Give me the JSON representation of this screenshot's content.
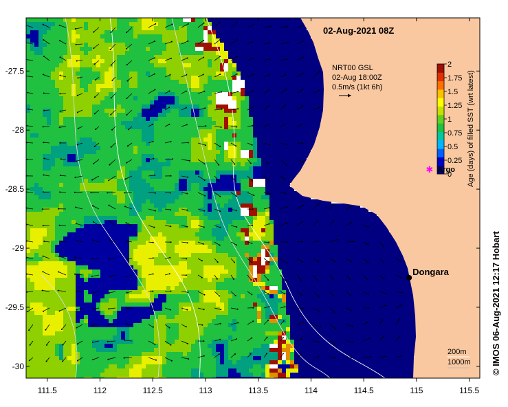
{
  "map": {
    "title": "02-Aug-2021 08Z",
    "lon_range": [
      111.3,
      115.6
    ],
    "lat_range": [
      -30.1,
      -27.05
    ],
    "x_ticks": [
      {
        "value": 111.5,
        "label": "111.5"
      },
      {
        "value": 112,
        "label": "112"
      },
      {
        "value": 112.5,
        "label": "112.5"
      },
      {
        "value": 113,
        "label": "113"
      },
      {
        "value": 113.5,
        "label": "113.5"
      },
      {
        "value": 114,
        "label": "114"
      },
      {
        "value": 114.5,
        "label": "114.5"
      },
      {
        "value": 115,
        "label": "115"
      },
      {
        "value": 115.5,
        "label": "115.5"
      }
    ],
    "y_ticks": [
      {
        "value": -27.5,
        "label": "-27.5"
      },
      {
        "value": -28,
        "label": "-28"
      },
      {
        "value": -28.5,
        "label": "-28.5"
      },
      {
        "value": -29,
        "label": "-29"
      },
      {
        "value": -29.5,
        "label": "-29.5"
      },
      {
        "value": -30,
        "label": "-30"
      }
    ],
    "current_legend": {
      "line1": "NRT00 GSL",
      "line2": "02-Aug 18:00Z",
      "line3": "0.5m/s (1kt 6h)"
    },
    "places": [
      {
        "name": "Dongara",
        "lon": 114.93,
        "lat": -29.25,
        "marker": "dot"
      },
      {
        "name": "Argo",
        "lon": 115.12,
        "lat": -28.33,
        "marker": "star"
      }
    ],
    "depth_legend": {
      "line1": "200m",
      "line2": "1000m"
    },
    "colorbar": {
      "label": "Age (days) of filled SST (wrt latest)",
      "ticks": [
        "0",
        "0.25",
        "0.5",
        "0.75",
        "1",
        "1.25",
        "1.5",
        "1.75",
        "2"
      ],
      "colors": [
        "#000080",
        "#0000c8",
        "#0060ff",
        "#00b4ff",
        "#00c8a0",
        "#20c040",
        "#60d020",
        "#c8e000",
        "#ffff00",
        "#ffc000",
        "#ff7000",
        "#e03000",
        "#a01000"
      ]
    },
    "colors": {
      "land": "#f9c8a0",
      "ocean_deep": "#000080",
      "age_0": "#0000a0",
      "age_mid_teal": "#00a080",
      "age_green": "#20c040",
      "age_lime": "#8ed000",
      "age_yellow": "#e8f000",
      "age_orange": "#e09000",
      "age_red": "#a01000"
    }
  },
  "credit": "© IMOS 06-Aug-2021 12:17 Hobart"
}
